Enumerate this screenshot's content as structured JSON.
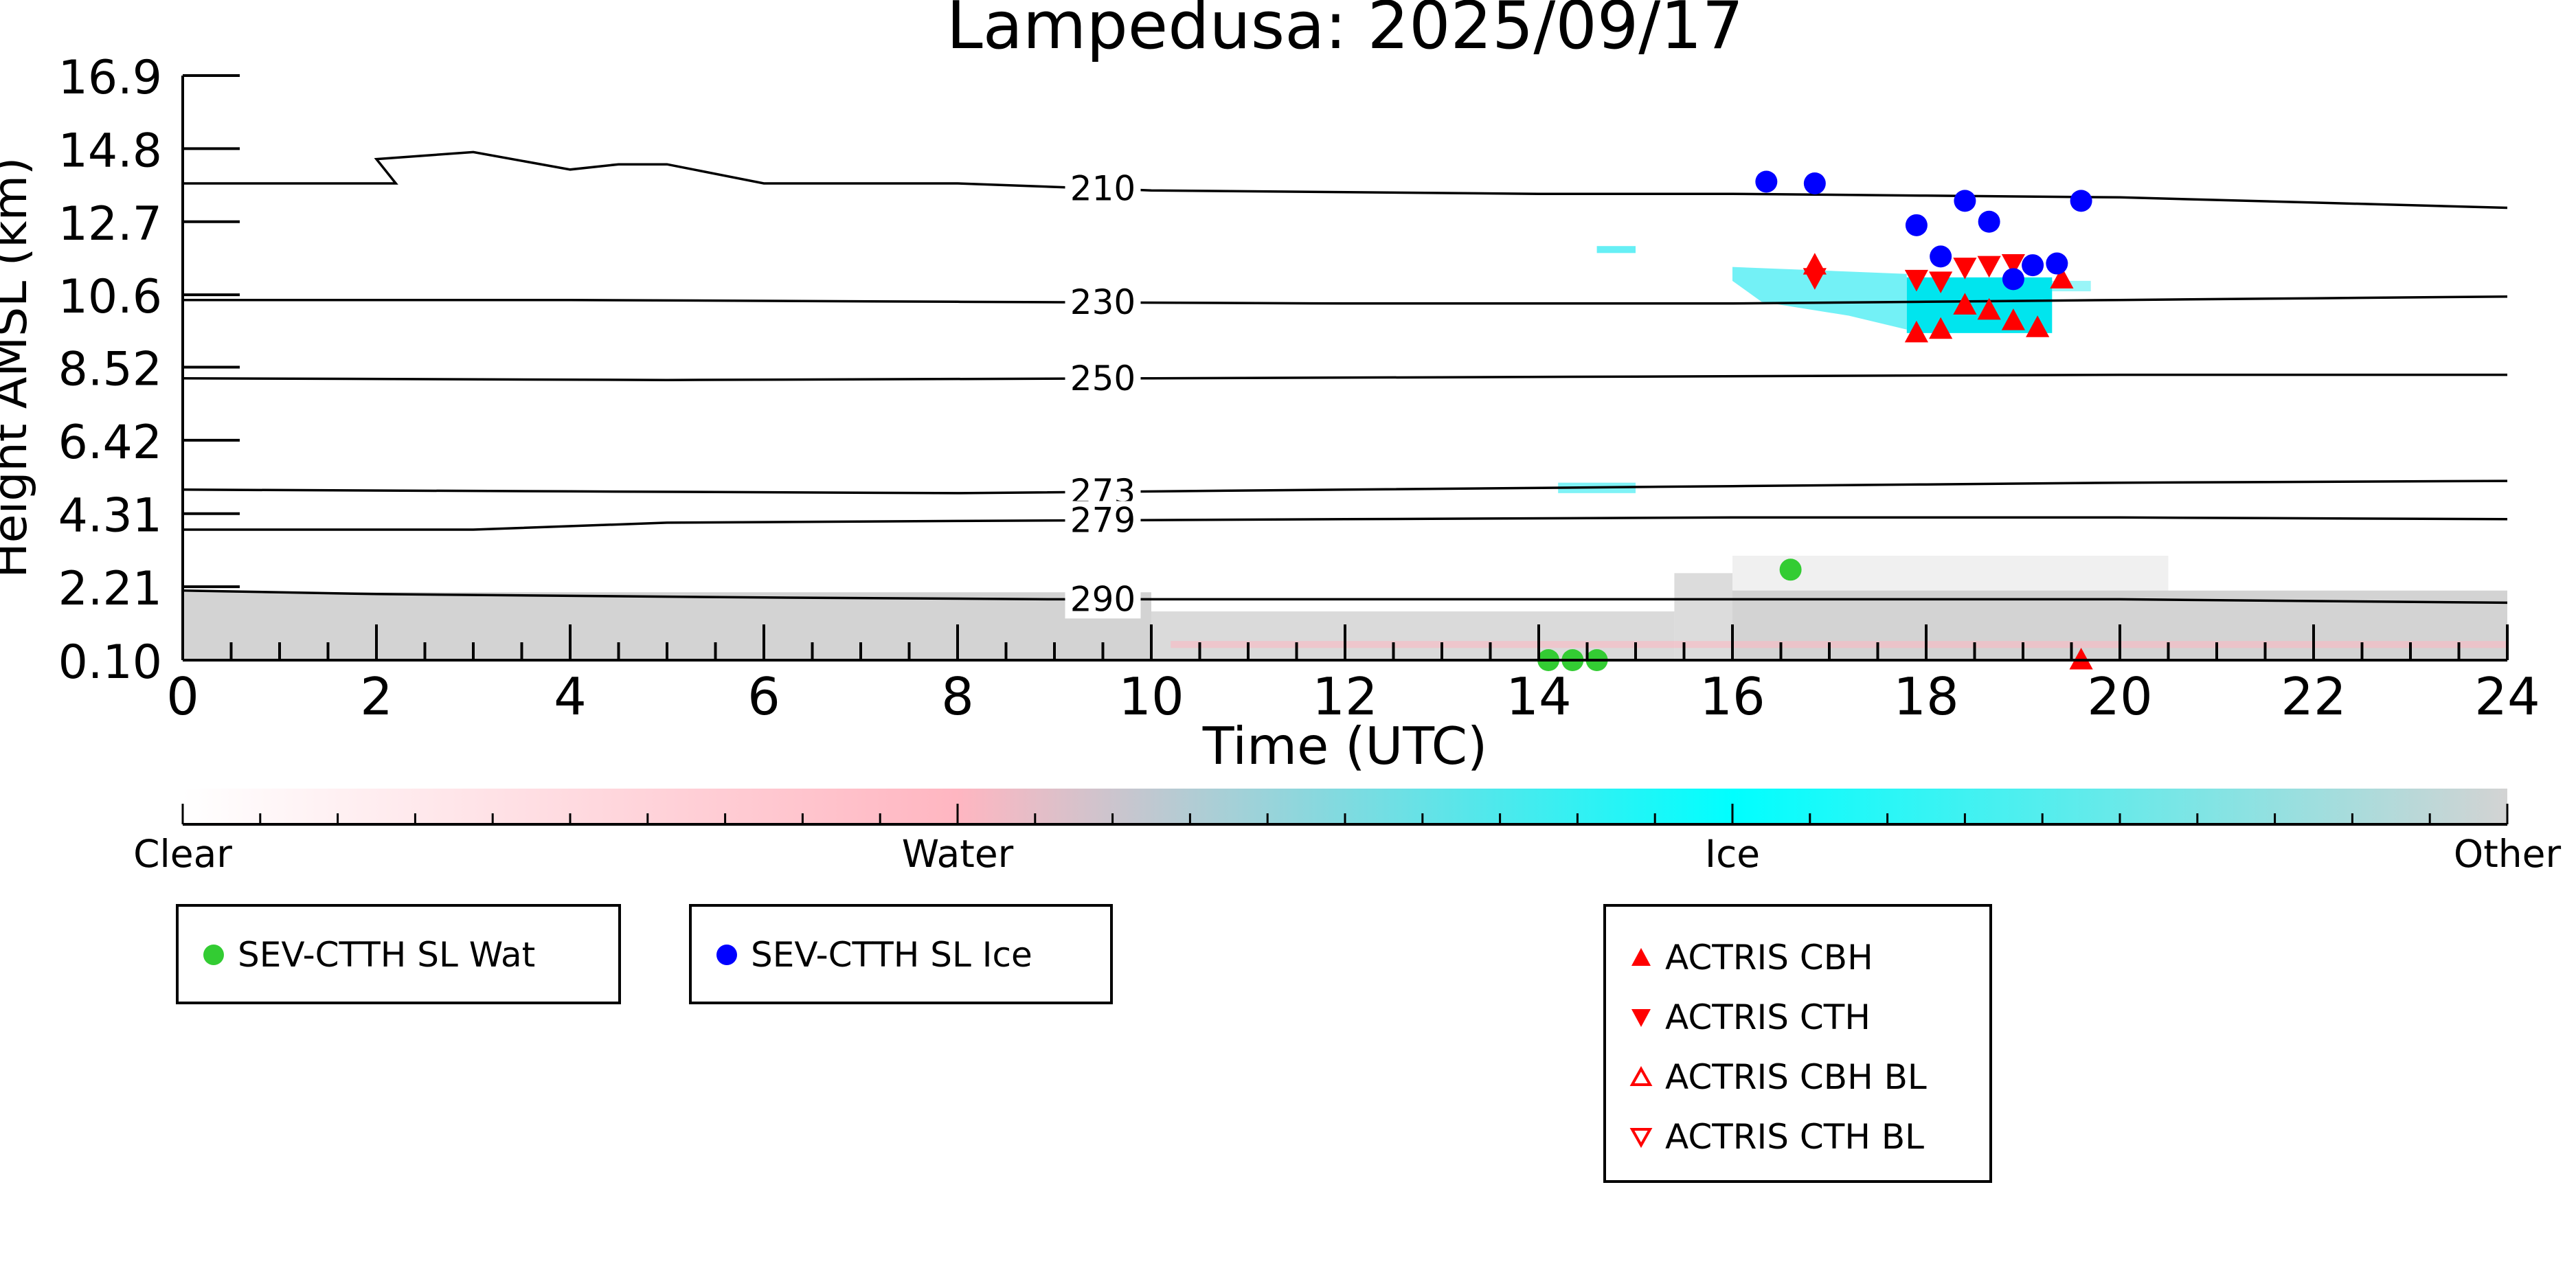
{
  "chart_data": {
    "type": "scatter",
    "title": "Lampedusa: 2025/09/17",
    "xlabel": "Time (UTC)",
    "ylabel": "Height AMSL (km)",
    "xlim": [
      0,
      24
    ],
    "ylim": [
      0.1,
      16.9
    ],
    "xticks": [
      "0",
      "2",
      "4",
      "6",
      "8",
      "10",
      "12",
      "14",
      "16",
      "18",
      "20",
      "22",
      "24"
    ],
    "yticks": [
      "0.10",
      "2.21",
      "4.31",
      "6.42",
      "8.52",
      "10.6",
      "12.7",
      "14.8",
      "16.9"
    ],
    "temperature_contours": [
      {
        "label": "210",
        "label_x": 9.5,
        "points": [
          [
            0,
            13.8
          ],
          [
            1.4,
            13.8
          ],
          [
            2.2,
            13.8
          ],
          [
            2,
            14.5
          ],
          [
            2.5,
            14.6
          ],
          [
            3,
            14.7
          ],
          [
            4,
            14.2
          ],
          [
            4.5,
            14.35
          ],
          [
            5,
            14.35
          ],
          [
            6,
            13.8
          ],
          [
            8,
            13.8
          ],
          [
            10,
            13.6
          ],
          [
            14,
            13.5
          ],
          [
            16,
            13.5
          ],
          [
            18,
            13.45
          ],
          [
            20,
            13.4
          ],
          [
            22,
            13.25
          ],
          [
            24,
            13.1
          ]
        ]
      },
      {
        "label": "230",
        "label_x": 9.5,
        "points": [
          [
            0,
            10.45
          ],
          [
            4,
            10.45
          ],
          [
            8,
            10.4
          ],
          [
            12,
            10.35
          ],
          [
            16,
            10.35
          ],
          [
            18,
            10.4
          ],
          [
            20,
            10.45
          ],
          [
            22,
            10.5
          ],
          [
            24,
            10.55
          ]
        ]
      },
      {
        "label": "250",
        "label_x": 9.5,
        "points": [
          [
            0,
            8.2
          ],
          [
            5,
            8.15
          ],
          [
            10,
            8.2
          ],
          [
            15,
            8.25
          ],
          [
            20,
            8.3
          ],
          [
            24,
            8.3
          ]
        ]
      },
      {
        "label": "273",
        "label_x": 9.5,
        "points": [
          [
            0,
            5.0
          ],
          [
            4,
            4.95
          ],
          [
            8,
            4.9
          ],
          [
            12,
            5.0
          ],
          [
            16,
            5.1
          ],
          [
            18,
            5.15
          ],
          [
            20,
            5.2
          ],
          [
            24,
            5.25
          ]
        ]
      },
      {
        "label": "279",
        "label_x": 9.5,
        "points": [
          [
            0,
            3.85
          ],
          [
            3,
            3.85
          ],
          [
            5,
            4.05
          ],
          [
            8,
            4.1
          ],
          [
            12,
            4.15
          ],
          [
            16,
            4.2
          ],
          [
            20,
            4.2
          ],
          [
            24,
            4.15
          ]
        ]
      },
      {
        "label": "290",
        "label_x": 9.5,
        "points": [
          [
            0,
            2.1
          ],
          [
            2,
            2.0
          ],
          [
            6,
            1.9
          ],
          [
            9,
            1.85
          ],
          [
            12,
            1.85
          ],
          [
            16,
            1.85
          ],
          [
            20,
            1.85
          ],
          [
            24,
            1.75
          ]
        ]
      }
    ],
    "sev_ctth_sl_wat": {
      "x": [
        14.1,
        14.35,
        14.6,
        16.6
      ],
      "y": [
        0.1,
        0.1,
        0.1,
        2.7
      ]
    },
    "sev_ctth_sl_ice": {
      "x": [
        16.35,
        16.85,
        17.9,
        18.15,
        18.4,
        18.65,
        18.9,
        19.1,
        19.35,
        19.6
      ],
      "y": [
        13.85,
        13.8,
        12.6,
        11.7,
        13.3,
        12.7,
        11.05,
        11.45,
        11.5,
        13.3
      ]
    },
    "actris_cbh": {
      "x": [
        16.85,
        17.9,
        18.15,
        18.4,
        18.65,
        18.9,
        19.15,
        19.4,
        19.6
      ],
      "y": [
        11.45,
        9.5,
        9.6,
        10.3,
        10.15,
        9.85,
        9.65,
        11.05,
        0.1
      ]
    },
    "actris_cth": {
      "x": [
        16.85,
        17.9,
        18.15,
        18.4,
        18.65,
        18.9
      ],
      "y": [
        11.1,
        11.05,
        11.0,
        11.4,
        11.45,
        11.5
      ]
    },
    "colorbar": {
      "labels": [
        "Clear",
        "Water",
        "Ice",
        "Other"
      ],
      "colors": [
        "#ffffff",
        "#ffb6c1",
        "#00ffff",
        "#d3d3d3"
      ]
    },
    "colors": {
      "water_marker": "#33cc33",
      "ice_marker": "#0000ff",
      "actris_marker": "#ff0000",
      "ice_cloud": "#00e5ee",
      "other_bg": "#d3d3d3",
      "water_bg": "#ffb6c1"
    }
  },
  "legends": {
    "wat": {
      "label": "SEV-CTTH SL Wat"
    },
    "ice": {
      "label": "SEV-CTTH SL Ice"
    },
    "actris": [
      {
        "label": "ACTRIS CBH",
        "symbol": "up-filled"
      },
      {
        "label": "ACTRIS CTH",
        "symbol": "down-filled"
      },
      {
        "label": "ACTRIS CBH BL",
        "symbol": "up-open"
      },
      {
        "label": "ACTRIS CTH BL",
        "symbol": "down-open"
      }
    ]
  }
}
